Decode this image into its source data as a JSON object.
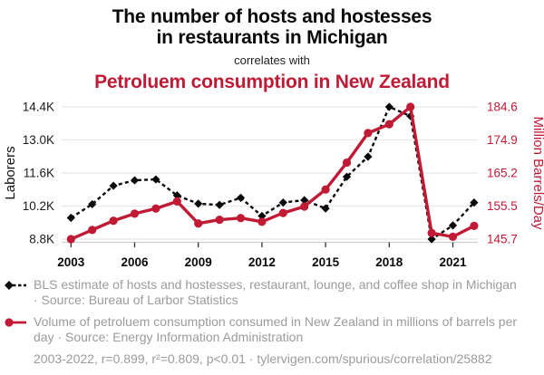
{
  "title": {
    "line1": "The number of hosts and hostesses",
    "line2": "in restaurants in Michigan",
    "connector": "correlates with",
    "accent": "Petroluem consumption in New Zealand"
  },
  "colors": {
    "series1_black": "#0a0a0a",
    "series2_red": "#c01a35",
    "caption_gray": "#9b9b9b",
    "gridline": "#e8e8e8",
    "axis_line": "#cfcfcf",
    "tick_mark": "#333333"
  },
  "chart_data": {
    "type": "line",
    "x": [
      2003,
      2004,
      2005,
      2006,
      2007,
      2008,
      2009,
      2010,
      2011,
      2012,
      2013,
      2014,
      2015,
      2016,
      2017,
      2018,
      2019,
      2020,
      2021,
      2022
    ],
    "x_ticks": [
      2003,
      2006,
      2009,
      2012,
      2015,
      2018,
      2021
    ],
    "x_tick_labels": [
      "2003",
      "2006",
      "2009",
      "2012",
      "2015",
      "2018",
      "2021"
    ],
    "series": [
      {
        "name": "Hosts and hostesses in restaurants in Michigan",
        "axis": "left",
        "line_style": "dashed",
        "marker": "diamond",
        "color": "#0a0a0a",
        "values": [
          9700,
          10280,
          11060,
          11290,
          11330,
          10650,
          10300,
          10250,
          10550,
          9780,
          10350,
          10450,
          10100,
          11440,
          12290,
          14400,
          14010,
          8800,
          9380,
          10350
        ]
      },
      {
        "name": "Petroleum consumption in New Zealand",
        "axis": "right",
        "line_style": "solid",
        "marker": "circle",
        "color": "#c01a35",
        "values": [
          145.7,
          148.4,
          151.1,
          153.2,
          154.7,
          156.8,
          150.3,
          151.4,
          151.9,
          150.8,
          153.4,
          155.3,
          160.3,
          168.2,
          176.9,
          179.5,
          184.6,
          147.5,
          146.4,
          149.6
        ]
      }
    ],
    "left_axis": {
      "label": "Laborers",
      "min": 8800,
      "max": 14400,
      "tick_labels_top_to_bottom": [
        "14.4K",
        "13.0K",
        "11.6K",
        "10.2K",
        "8.8K"
      ]
    },
    "right_axis": {
      "label": "Million Barrels/Day",
      "min": 145.7,
      "max": 184.6,
      "tick_labels_top_to_bottom": [
        "184.6",
        "174.9",
        "165.2",
        "155.5",
        "145.7"
      ]
    },
    "grid": true,
    "legend_position": "below"
  },
  "legend": [
    {
      "marker": "black-diamond-dashed",
      "label": "BLS estimate of hosts and hostesses, restaurant, lounge, and coffee shop in Michigan · Source: Bureau of Larbor Statistics"
    },
    {
      "marker": "red-circle-solid",
      "label": "Volume of petroluem consumption consumed in New Zealand in millions of barrels per day · Source: Energy Information Administration"
    }
  ],
  "footer": {
    "stats": "2003-2022, r=0.899, r²=0.809, p<0.01 · tylervigen.com/spurious/correlation/25882"
  }
}
